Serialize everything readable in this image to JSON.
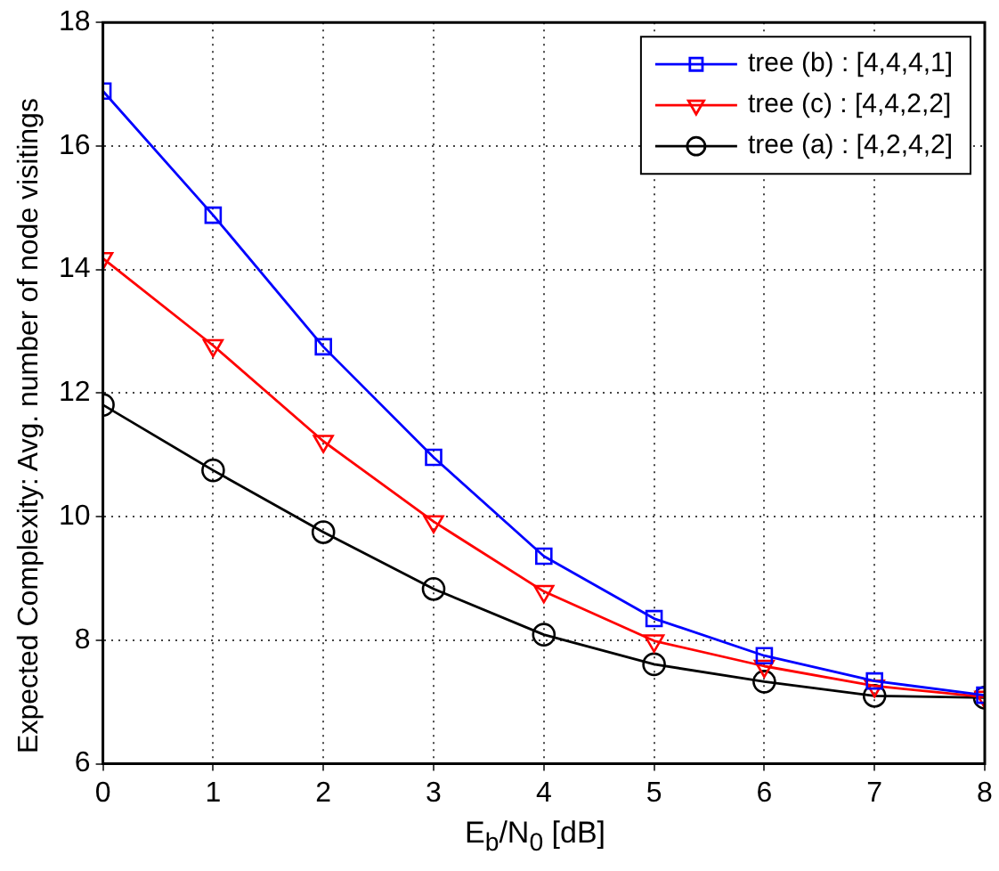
{
  "chart_data": {
    "type": "line",
    "xlabel": "E$_{b}$/N$_{0}$ [dB]",
    "ylabel": "Expected Complexity: Avg. number of node visitings",
    "x": [
      0,
      1,
      2,
      3,
      4,
      5,
      6,
      7,
      8
    ],
    "xlim": [
      0,
      8
    ],
    "xticks": [
      0,
      1,
      2,
      3,
      4,
      5,
      6,
      7,
      8
    ],
    "ylim": [
      6,
      18
    ],
    "yticks": [
      6,
      8,
      10,
      12,
      14,
      16,
      18
    ],
    "grid": true,
    "legend": "top right",
    "line_style": "solid",
    "series": [
      {
        "name": "tree (b) : [4,4,4,1]",
        "color": "#0000ff",
        "marker": "square",
        "values": [
          16.89,
          14.88,
          12.75,
          10.96,
          9.36,
          8.35,
          7.75,
          7.34,
          7.11
        ]
      },
      {
        "name": "tree (c) : [4,4,2,2]",
        "color": "#ff0000",
        "marker": "triangle",
        "values": [
          14.18,
          12.77,
          11.22,
          9.92,
          8.79,
          7.99,
          7.58,
          7.26,
          7.08
        ]
      },
      {
        "name": "tree (a) : [4,2,4,2]",
        "color": "#000000",
        "marker": "circle",
        "values": [
          11.81,
          10.75,
          9.75,
          8.83,
          8.09,
          7.61,
          7.33,
          7.1,
          7.07
        ]
      }
    ]
  }
}
